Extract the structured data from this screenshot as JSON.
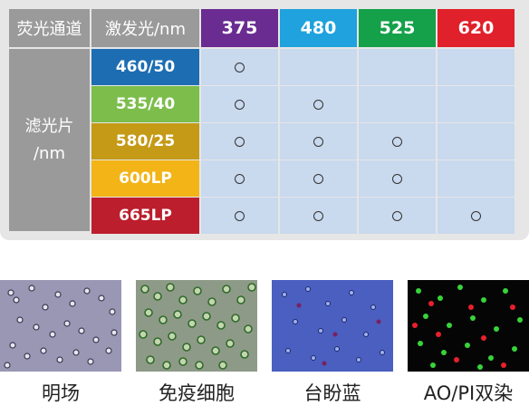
{
  "table": {
    "header_channel": "荧光通道",
    "header_excitation": "激发光/nm",
    "excitations": [
      {
        "label": "375",
        "color": "#6a2c91"
      },
      {
        "label": "480",
        "color": "#1fa2dd"
      },
      {
        "label": "525",
        "color": "#15a04a"
      },
      {
        "label": "620",
        "color": "#e0202a"
      }
    ],
    "side_label_line1": "滤光片",
    "side_label_line2": "/nm",
    "filters": [
      {
        "label": "460/50",
        "color": "#1d6db3",
        "marks": [
          true,
          false,
          false,
          false
        ]
      },
      {
        "label": "535/40",
        "color": "#7cbd4b",
        "marks": [
          true,
          true,
          false,
          false
        ]
      },
      {
        "label": "580/25",
        "color": "#c59a16",
        "marks": [
          true,
          true,
          true,
          false
        ]
      },
      {
        "label": "600LP",
        "color": "#f2b417",
        "marks": [
          true,
          true,
          true,
          false
        ]
      },
      {
        "label": "665LP",
        "color": "#bc1e2d",
        "marks": [
          true,
          true,
          true,
          true
        ]
      }
    ]
  },
  "images": [
    {
      "caption": "明场",
      "icon": "brightfield-cells-image"
    },
    {
      "caption": "免疫细胞",
      "icon": "immune-cells-image"
    },
    {
      "caption": "台盼蓝",
      "icon": "trypan-blue-image"
    },
    {
      "caption": "AO/PI双染",
      "icon": "ao-pi-stain-image"
    }
  ]
}
